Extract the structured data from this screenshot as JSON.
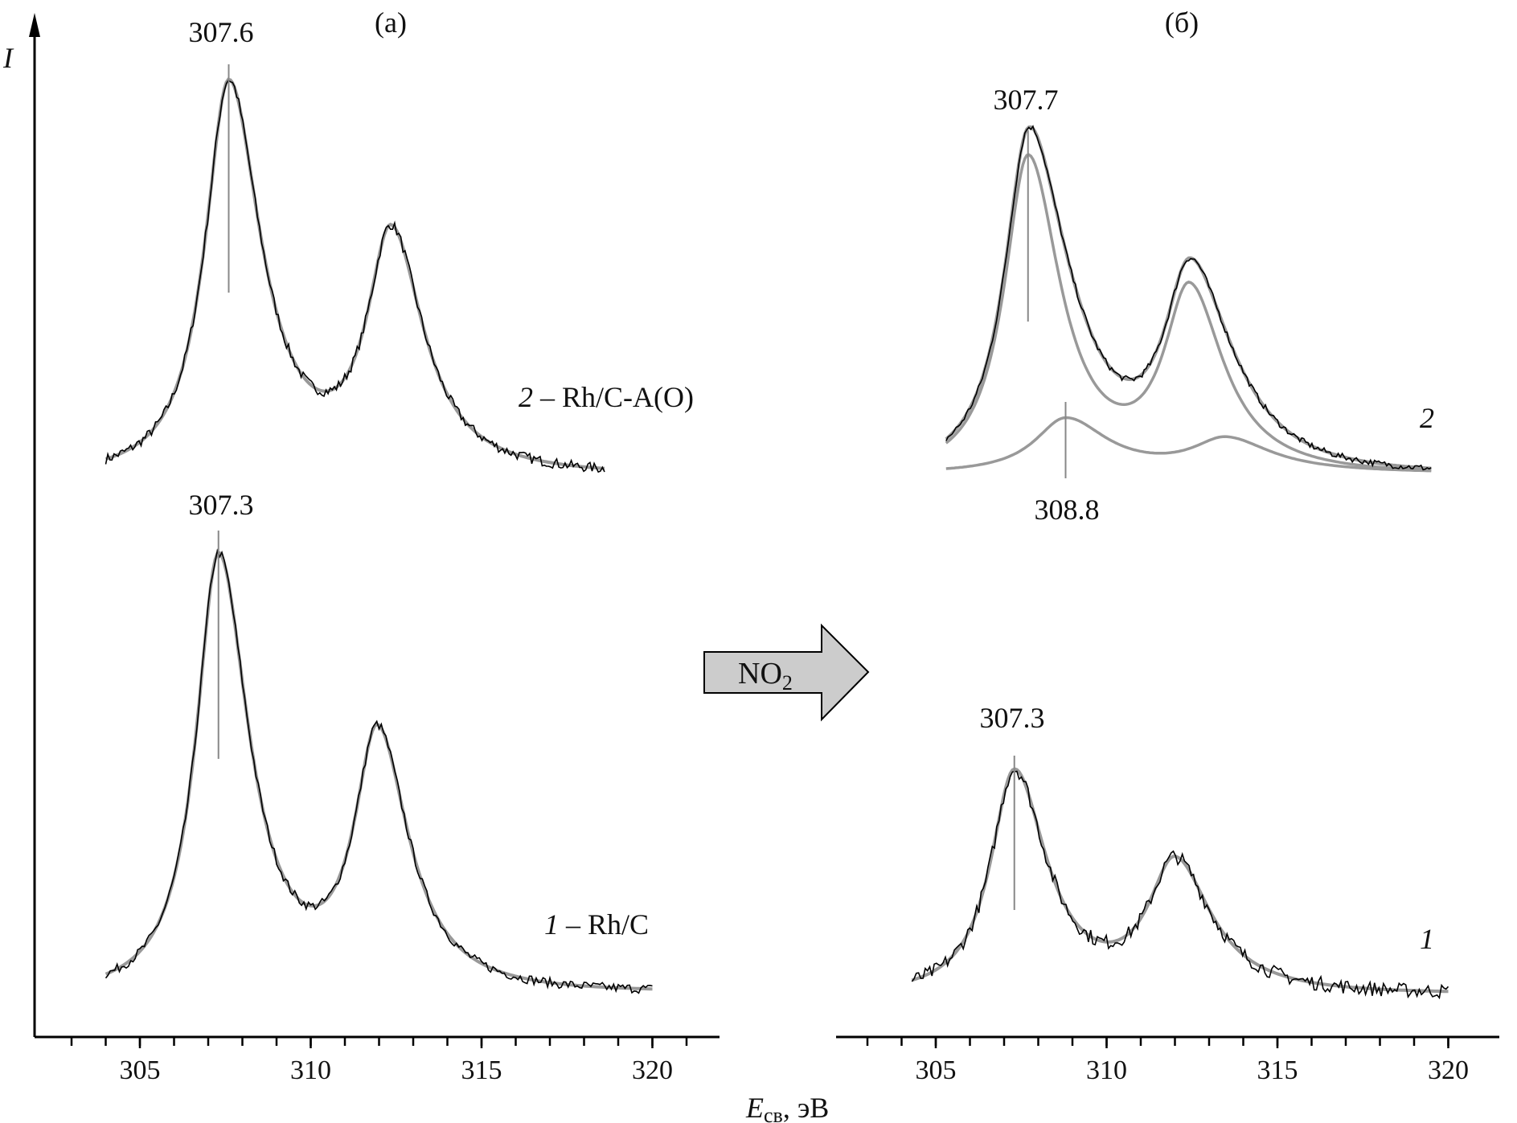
{
  "chart_data": [
    {
      "type": "line",
      "panel_label": "(а)",
      "y_axis_label": "I",
      "x_axis_label_main": "E",
      "x_axis_label_sub": "св",
      "x_axis_label_unit": ", эВ",
      "xlim": [
        302.5,
        322
      ],
      "tick_labels": [
        "305",
        "310",
        "315",
        "320"
      ],
      "tick_values": [
        305,
        310,
        315,
        320
      ],
      "minor_ticks": [
        303,
        304,
        305,
        306,
        307,
        308,
        309,
        310,
        311,
        312,
        313,
        314,
        315,
        316,
        317,
        318,
        319,
        320,
        321
      ],
      "spectra": [
        {
          "label_num": "2",
          "label_text": " – Rh/C-A(O)",
          "x_range": [
            304,
            318.6
          ],
          "peak_label": "307.6",
          "peak_marker_x": 307.6,
          "peaks": [
            {
              "center": 307.6,
              "height": 1.0,
              "width": 0.85
            },
            {
              "center": 312.35,
              "height": 0.6,
              "width": 0.85
            }
          ],
          "noise": 0.012
        },
        {
          "label_num": "1",
          "label_text": " – Rh/C",
          "x_range": [
            304,
            320
          ],
          "peak_label": "307.3",
          "peak_marker_x": 307.3,
          "peaks": [
            {
              "center": 307.3,
              "height": 1.0,
              "width": 0.8
            },
            {
              "center": 311.95,
              "height": 0.58,
              "width": 0.82
            }
          ],
          "noise": 0.01
        }
      ]
    },
    {
      "type": "line",
      "panel_label": "(б)",
      "annotation": "NO",
      "annotation_sub": "2",
      "xlim": [
        302.5,
        321
      ],
      "tick_labels": [
        "305",
        "310",
        "315",
        "320"
      ],
      "tick_values": [
        305,
        310,
        315,
        320
      ],
      "minor_ticks": [
        303,
        304,
        305,
        306,
        307,
        308,
        309,
        310,
        311,
        312,
        313,
        314,
        315,
        316,
        317,
        318,
        319,
        320
      ],
      "spectra": [
        {
          "label_num": "2",
          "label_text": "",
          "x_range": [
            305.3,
            319.5
          ],
          "peak_label": "307.7",
          "peak_marker_x": 307.7,
          "second_label": "308.8",
          "second_marker_x": 308.8,
          "components": [
            {
              "peaks": [
                {
                  "center": 307.7,
                  "height": 0.88,
                  "width": 0.85
                },
                {
                  "center": 312.42,
                  "height": 0.5,
                  "width": 0.9
                }
              ]
            },
            {
              "peaks": [
                {
                  "center": 308.8,
                  "height": 0.15,
                  "width": 1.1
                },
                {
                  "center": 313.5,
                  "height": 0.09,
                  "width": 1.2
                }
              ]
            }
          ],
          "noise": 0.008
        },
        {
          "label_num": "1",
          "label_text": "",
          "x_range": [
            304.3,
            320
          ],
          "peak_label": "307.3",
          "peak_marker_x": 307.3,
          "peaks": [
            {
              "center": 307.3,
              "height": 1.0,
              "width": 0.85
            },
            {
              "center": 312.0,
              "height": 0.58,
              "width": 0.95
            }
          ],
          "noise": 0.03
        }
      ]
    }
  ]
}
